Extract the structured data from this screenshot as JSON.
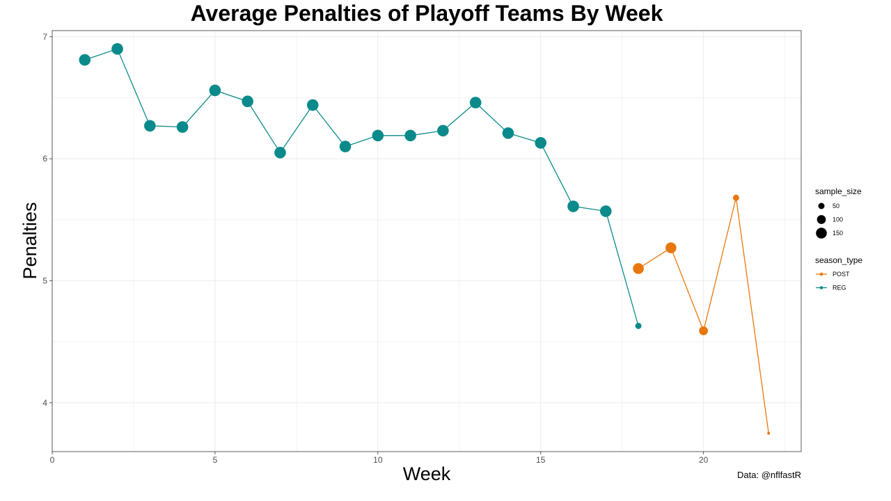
{
  "chart_data": {
    "type": "line",
    "title": "Average Penalties of Playoff Teams By Week",
    "xlabel": "Week",
    "ylabel": "Penalties",
    "caption": "Data: @nflfastR",
    "xlim": [
      0,
      23
    ],
    "ylim": [
      3.6,
      7.05
    ],
    "x_ticks": [
      0,
      5,
      10,
      15,
      20
    ],
    "y_ticks": [
      4,
      5,
      6,
      7
    ],
    "grid": true,
    "legend_placement": "right",
    "size_legend": {
      "title": "sample_size",
      "entries": [
        {
          "label": "50",
          "value": 50
        },
        {
          "label": "100",
          "value": 100
        },
        {
          "label": "150",
          "value": 150
        }
      ]
    },
    "color_legend": {
      "title": "season_type"
    },
    "series": [
      {
        "name": "POST",
        "color": "#e8770e",
        "x": [
          18,
          19,
          20,
          21,
          22
        ],
        "y": [
          5.1,
          5.27,
          4.59,
          5.68,
          3.75
        ],
        "sample_size": [
          150,
          150,
          100,
          50,
          10
        ]
      },
      {
        "name": "REG",
        "color": "#0a8a8a",
        "x": [
          1,
          2,
          3,
          4,
          5,
          6,
          7,
          8,
          9,
          10,
          11,
          12,
          13,
          14,
          15,
          16,
          17,
          18
        ],
        "y": [
          6.81,
          6.9,
          6.27,
          6.26,
          6.56,
          6.47,
          6.05,
          6.44,
          6.1,
          6.19,
          6.19,
          6.23,
          6.46,
          6.21,
          6.13,
          5.61,
          5.57,
          4.63
        ],
        "sample_size": [
          170,
          170,
          170,
          170,
          170,
          170,
          170,
          170,
          170,
          170,
          170,
          170,
          170,
          170,
          170,
          170,
          170,
          50
        ]
      }
    ]
  }
}
